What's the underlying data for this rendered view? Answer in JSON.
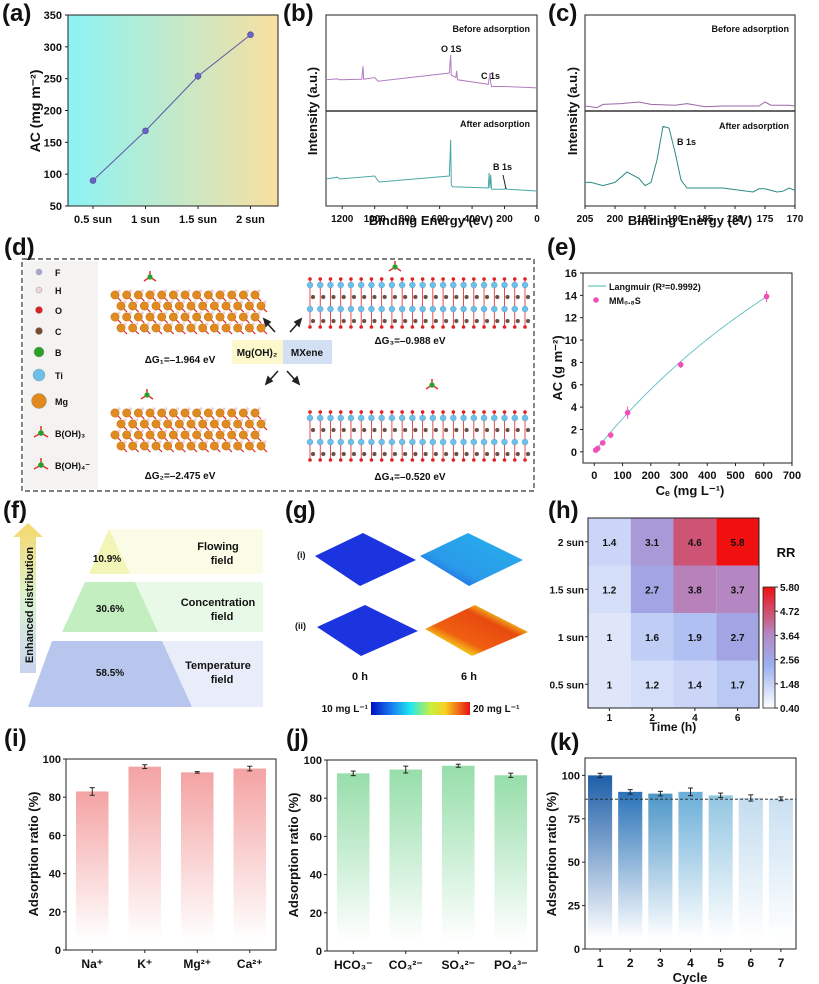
{
  "panel_labels": [
    "(a)",
    "(b)",
    "(c)",
    "(d)",
    "(e)",
    "(f)",
    "(g)",
    "(h)",
    "(i)",
    "(j)",
    "(k)"
  ],
  "chart_data": [
    {
      "id": "a",
      "type": "line",
      "title": "",
      "xlabel": "",
      "ylabel": "AC (mg m⁻²)",
      "categories": [
        "0.5 sun",
        "1 sun",
        "1.5 sun",
        "2 sun"
      ],
      "values": [
        90,
        168,
        254,
        319
      ],
      "errors": [
        5,
        5,
        6,
        4
      ],
      "ylim": [
        50,
        350
      ],
      "yticks": [
        50,
        100,
        150,
        200,
        250,
        300,
        350
      ],
      "background_gradient": [
        "#8cf3f5",
        "#f8dfa0"
      ],
      "line_color": "#5b56a6",
      "grid": false
    },
    {
      "id": "b",
      "type": "line",
      "xlabel": "Binding Energy (eV)",
      "ylabel": "Intensity (a.u.)",
      "xlim": [
        1300,
        0
      ],
      "xticks": [
        1200,
        1000,
        800,
        600,
        400,
        200,
        0
      ],
      "series": [
        {
          "name": "Before adsorption",
          "color": "#b07ec0",
          "x": [
            1300,
            1230,
            1215,
            1080,
            1072,
            1068,
            1000,
            980,
            970,
            540,
            532,
            528,
            500,
            495,
            490,
            300,
            290,
            285,
            280,
            200,
            0
          ],
          "y": [
            0.45,
            0.47,
            0.45,
            0.46,
            0.75,
            0.46,
            0.5,
            0.42,
            0.42,
            0.6,
            1.0,
            0.55,
            0.5,
            0.65,
            0.45,
            0.35,
            0.6,
            0.38,
            0.3,
            0.3,
            0.27
          ]
        },
        {
          "name": "After adsorption",
          "color": "#4aa9a8",
          "x": [
            1300,
            1230,
            1215,
            1000,
            980,
            970,
            540,
            532,
            528,
            520,
            300,
            295,
            290,
            285,
            280,
            200,
            192,
            185,
            0
          ],
          "y": [
            0.35,
            0.38,
            0.35,
            0.4,
            0.32,
            0.3,
            0.4,
            1.0,
            0.25,
            0.22,
            0.2,
            0.45,
            0.2,
            0.42,
            0.18,
            0.18,
            0.2,
            0.18,
            0.15
          ]
        }
      ],
      "annotations": [
        "O 1S",
        "C 1s",
        "B 1s"
      ]
    },
    {
      "id": "c",
      "type": "line",
      "xlabel": "Binding Energy (eV)",
      "ylabel": "Intensity (a.u.)",
      "xlim": [
        205,
        170
      ],
      "xticks": [
        205,
        200,
        195,
        190,
        185,
        180,
        175,
        170
      ],
      "series": [
        {
          "name": "Before adsorption",
          "color": "#9b68a8",
          "x": [
            205,
            203,
            202,
            199,
            196,
            194,
            190,
            188,
            185,
            182,
            178,
            176,
            175,
            174,
            171,
            170
          ],
          "y": [
            0.3,
            0.28,
            0.32,
            0.33,
            0.35,
            0.32,
            0.31,
            0.33,
            0.29,
            0.3,
            0.3,
            0.3,
            0.35,
            0.31,
            0.31,
            0.3
          ]
        },
        {
          "name": "After adsorption",
          "color": "#2e8a85",
          "x": [
            205,
            204,
            202,
            200,
            198,
            196,
            195,
            194,
            193,
            192,
            191,
            190,
            189,
            188,
            185,
            182,
            180,
            177,
            176,
            175,
            173,
            172,
            171,
            170
          ],
          "y": [
            0.22,
            0.22,
            0.18,
            0.22,
            0.35,
            0.27,
            0.18,
            0.22,
            0.5,
            0.92,
            0.9,
            0.6,
            0.25,
            0.15,
            0.15,
            0.15,
            0.13,
            0.1,
            0.14,
            0.14,
            0.1,
            0.11,
            0.15,
            0.12
          ]
        }
      ],
      "annotations": [
        "B 1s"
      ]
    },
    {
      "id": "e",
      "type": "scatter",
      "xlabel": "Cₑ (mg L⁻¹)",
      "ylabel": "AC (g m⁻²)",
      "xlim": [
        -40,
        700
      ],
      "ylim": [
        -1,
        16
      ],
      "xticks": [
        0,
        100,
        200,
        300,
        400,
        500,
        600,
        700
      ],
      "yticks": [
        0,
        2,
        4,
        6,
        8,
        10,
        12,
        14,
        16
      ],
      "legend": [
        "Langmuir (R²=0.9992)",
        "MM₀.₈S"
      ],
      "legend_position": "top-left",
      "series": [
        {
          "name": "MM0.8S",
          "color": "#f050b8",
          "x": [
            5,
            12,
            30,
            58,
            118,
            306,
            610
          ],
          "y": [
            0.15,
            0.3,
            0.8,
            1.5,
            3.5,
            7.8,
            13.9
          ],
          "errors": [
            0.1,
            0.1,
            0.15,
            0.3,
            0.55,
            0.3,
            0.5
          ]
        },
        {
          "name": "Langmuir fit",
          "color": "#6fc3c8",
          "qmax": 50,
          "KL": 0.00063
        }
      ]
    },
    {
      "id": "h",
      "type": "heatmap",
      "xlabel": "Time (h)",
      "ylabel": "",
      "x_categories": [
        "1",
        "2",
        "4",
        "6"
      ],
      "y_categories": [
        "2 sun",
        "1.5 sun",
        "1 sun",
        "0.5 sun"
      ],
      "values": [
        [
          1.4,
          3.1,
          4.6,
          5.8
        ],
        [
          1.2,
          2.7,
          3.8,
          3.7
        ],
        [
          1,
          1.6,
          1.9,
          2.7
        ],
        [
          1,
          1.2,
          1.4,
          1.7
        ]
      ],
      "colorbar_title": "RR",
      "colorbar_ticks": [
        "5.80",
        "4.72",
        "3.64",
        "2.56",
        "1.48",
        "0.40"
      ],
      "colorbar_range": [
        0.4,
        5.8
      ]
    },
    {
      "id": "i",
      "type": "bar",
      "xlabel": "",
      "ylabel": "Adsorption ratio (%)",
      "categories": [
        "Na⁺",
        "K⁺",
        "Mg²⁺",
        "Ca²⁺"
      ],
      "values": [
        83,
        96,
        93,
        95
      ],
      "errors": [
        2,
        1,
        0.4,
        1.2
      ],
      "ylim": [
        0,
        100
      ],
      "yticks": [
        0,
        20,
        40,
        60,
        80,
        100
      ],
      "color": "#f4a3a3"
    },
    {
      "id": "j",
      "type": "bar",
      "xlabel": "",
      "ylabel": "Adsorption ratio (%)",
      "categories": [
        "HCO₃⁻",
        "CO₃²⁻",
        "SO₄²⁻",
        "PO₄³⁻"
      ],
      "values": [
        93,
        95,
        97,
        92
      ],
      "errors": [
        1.2,
        1.8,
        0.8,
        1.1
      ],
      "ylim": [
        0,
        100
      ],
      "yticks": [
        0,
        20,
        40,
        60,
        80,
        100
      ],
      "color": "#96deaa"
    },
    {
      "id": "k",
      "type": "bar",
      "xlabel": "Cycle",
      "ylabel": "Adsorption ratio (%)",
      "categories": [
        "1",
        "2",
        "3",
        "4",
        "5",
        "6",
        "7"
      ],
      "values": [
        100,
        90.5,
        89.5,
        90.5,
        88.5,
        87,
        86.5
      ],
      "errors": [
        1.2,
        1.3,
        1.3,
        2.2,
        1.3,
        1.8,
        1.1
      ],
      "colors": [
        "#1d5ea8",
        "#2a73b8",
        "#4d96c8",
        "#6aaed8",
        "#93c6e2",
        "#c3dcef",
        "#c9e0f2"
      ],
      "ylim": [
        0,
        110
      ],
      "yticks": [
        0,
        25,
        50,
        75,
        100
      ],
      "reference_line": 86.3
    }
  ],
  "panel_b": {
    "before_label": "Before adsorption",
    "after_label": "After adsorption",
    "o1s": "O 1S",
    "c1s": "C 1s",
    "b1s": "B 1s"
  },
  "panel_c": {
    "before_label": "Before adsorption",
    "after_label": "After adsorption",
    "b1s": "B 1s"
  },
  "panel_d": {
    "legend": [
      "F",
      "H",
      "O",
      "C",
      "B",
      "Ti",
      "Mg",
      "B(OH)₃",
      "B(OH)₄⁻"
    ],
    "legend_colors": [
      "#a8a8d8",
      "#f2d4d4",
      "#e02020",
      "#7a4a30",
      "#2aa02a",
      "#6cc0ea",
      "#e08a20"
    ],
    "center_left": "Mg(OH)₂",
    "center_right": "MXene",
    "dg1": "ΔG₁=–1.964 eV",
    "dg2": "ΔG₂=–2.475 eV",
    "dg3": "ΔG₃=–0.988 eV",
    "dg4": "ΔG₄=–0.520 eV"
  },
  "panel_f": {
    "arrow_label": "Enhanced distribution",
    "levels": [
      {
        "percent": "10.9%",
        "line1": "Flowing",
        "line2": "field",
        "color": "#f5f7c0",
        "bg": "#fbfce6"
      },
      {
        "percent": "30.6%",
        "line1": "Concentration",
        "line2": "field",
        "color": "#c9f0c5",
        "bg": "#e9f9e7"
      },
      {
        "percent": "58.5%",
        "line1": "Temperature",
        "line2": "field",
        "color": "#b8c6ee",
        "bg": "#e9edf9"
      }
    ]
  },
  "panel_g": {
    "row_labels": [
      "(i)",
      "(ii)"
    ],
    "col_labels": [
      "0 h",
      "6 h"
    ],
    "colorbar_min": "10 mg L⁻¹",
    "colorbar_max": "20 mg L⁻¹"
  }
}
